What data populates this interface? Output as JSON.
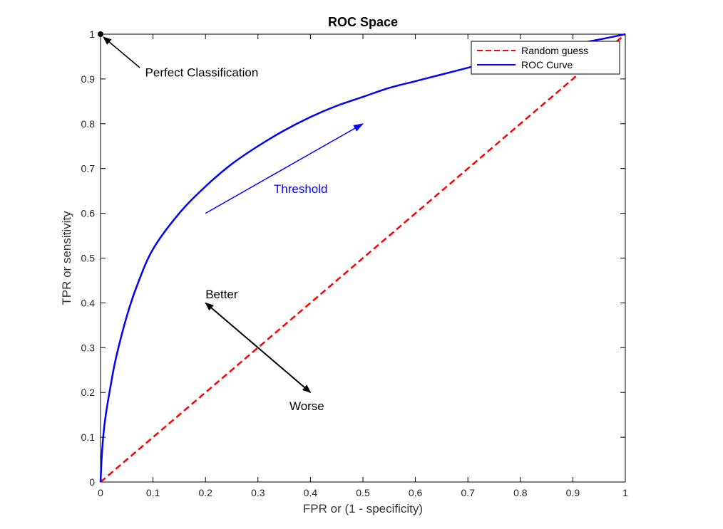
{
  "chart_data": {
    "type": "line",
    "title": "ROC Space",
    "xlabel": "FPR or (1 - specificity)",
    "ylabel": "TPR or sensitivity",
    "xlim": [
      0,
      1
    ],
    "ylim": [
      0,
      1
    ],
    "xticks": [
      "0",
      "0.1",
      "0.2",
      "0.3",
      "0.4",
      "0.5",
      "0.6",
      "0.7",
      "0.8",
      "0.9",
      "1"
    ],
    "yticks": [
      "0",
      "0.1",
      "0.2",
      "0.3",
      "0.4",
      "0.5",
      "0.6",
      "0.7",
      "0.8",
      "0.9",
      "1"
    ],
    "grid": false,
    "legend_position": "top-right",
    "series": [
      {
        "name": "Random guess",
        "style": "dashed",
        "color": "#ff0000",
        "x": [
          0,
          1
        ],
        "y": [
          0,
          1
        ]
      },
      {
        "name": "ROC Curve",
        "style": "solid",
        "color": "#0000ff",
        "x": [
          0,
          0.002,
          0.005,
          0.01,
          0.02,
          0.03,
          0.05,
          0.07,
          0.1,
          0.15,
          0.2,
          0.25,
          0.3,
          0.35,
          0.4,
          0.45,
          0.5,
          0.55,
          0.6,
          0.65,
          0.7,
          0.75,
          0.8,
          0.85,
          0.9,
          0.95,
          1.0
        ],
        "y": [
          0,
          0.05,
          0.1,
          0.15,
          0.22,
          0.28,
          0.37,
          0.44,
          0.52,
          0.6,
          0.66,
          0.71,
          0.75,
          0.785,
          0.815,
          0.84,
          0.86,
          0.88,
          0.895,
          0.91,
          0.925,
          0.94,
          0.952,
          0.965,
          0.977,
          0.988,
          1.0
        ]
      }
    ],
    "annotations": [
      {
        "text": "Perfect Classification",
        "point": [
          0,
          1
        ],
        "label_at": [
          0.085,
          0.915
        ],
        "arrow": "to-point",
        "color": "#000000"
      },
      {
        "text": "Threshold",
        "label_at": [
          0.33,
          0.655
        ],
        "arrow_from": [
          0.2,
          0.6
        ],
        "arrow_to": [
          0.5,
          0.8
        ],
        "color": "#0000ff"
      },
      {
        "text": "Better",
        "label_at": [
          0.2,
          0.42
        ],
        "arrow_from": [
          0.3,
          0.3
        ],
        "arrow_to": [
          0.2,
          0.4
        ],
        "color": "#000000"
      },
      {
        "text": "Worse",
        "label_at": [
          0.36,
          0.17
        ],
        "arrow_from": [
          0.3,
          0.3
        ],
        "arrow_to": [
          0.4,
          0.2
        ],
        "color": "#000000"
      }
    ]
  }
}
